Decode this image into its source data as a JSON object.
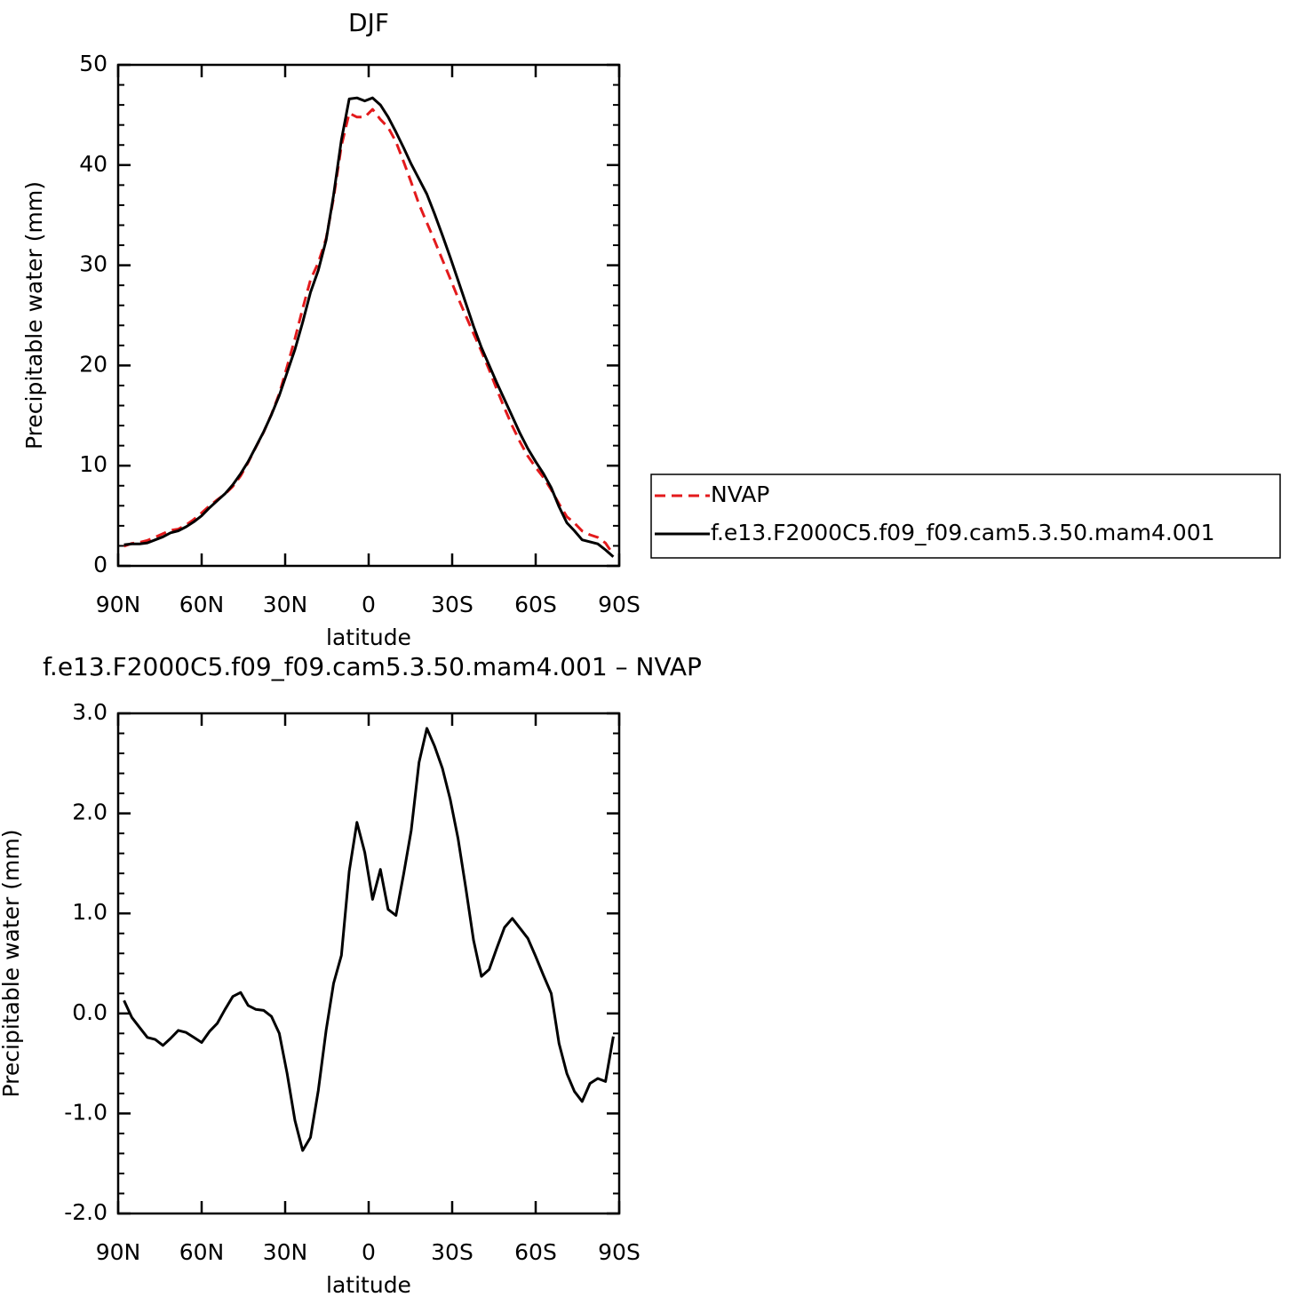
{
  "chart_data": [
    {
      "type": "line",
      "title": "DJF",
      "xlabel": "latitude",
      "ylabel": "Precipitable water (mm)",
      "x": [
        87.9,
        85.1,
        82.3,
        79.5,
        76.7,
        73.9,
        71.2,
        68.4,
        65.6,
        62.8,
        60,
        57.2,
        54.4,
        51.6,
        48.8,
        46,
        43.3,
        40.5,
        37.7,
        34.9,
        32.1,
        29.3,
        26.5,
        23.7,
        20.9,
        18.1,
        15.3,
        12.6,
        9.8,
        7,
        4.2,
        1.4,
        -1.4,
        -4.2,
        -7,
        -9.8,
        -12.6,
        -15.3,
        -18.1,
        -20.9,
        -23.7,
        -26.5,
        -29.3,
        -32.1,
        -34.9,
        -37.7,
        -40.5,
        -43.3,
        -46,
        -48.8,
        -51.6,
        -54.4,
        -57.2,
        -60,
        -62.8,
        -65.6,
        -68.4,
        -71.2,
        -73.9,
        -76.7,
        -79.5,
        -82.3,
        -85.1,
        -87.9
      ],
      "series": [
        {
          "name": "NVAP",
          "color": "#e31a1c",
          "line_style": "dashed",
          "values": [
            1.97,
            2.24,
            2.34,
            2.54,
            2.86,
            3.22,
            3.55,
            3.67,
            4.09,
            4.64,
            5.29,
            5.98,
            6.6,
            7.16,
            7.93,
            8.99,
            10.32,
            11.86,
            13.37,
            15.13,
            17.2,
            19.9,
            22.67,
            25.67,
            28.54,
            30.27,
            32.67,
            36.7,
            41.92,
            45.18,
            44.79,
            44.79,
            45.56,
            44.56,
            43.76,
            42.32,
            40.3,
            38.27,
            36.09,
            34.25,
            32.43,
            30.55,
            28.66,
            26.75,
            24.95,
            23.17,
            21.43,
            19.56,
            17.65,
            15.74,
            13.95,
            12.35,
            10.95,
            9.83,
            8.82,
            7.6,
            6.2,
            4.9,
            4.28,
            3.48,
            3.1,
            2.85,
            2.28,
            1.13
          ]
        },
        {
          "name": "f.e13.F2000C5.f09_f09.cam5.3.50.mam4.001",
          "color": "#000000",
          "line_style": "solid",
          "values": [
            2.1,
            2.2,
            2.2,
            2.3,
            2.6,
            2.9,
            3.3,
            3.5,
            3.9,
            4.4,
            5.0,
            5.8,
            6.5,
            7.2,
            8.1,
            9.2,
            10.4,
            11.9,
            13.4,
            15.1,
            17.0,
            19.3,
            21.6,
            24.3,
            27.3,
            29.5,
            32.5,
            37.0,
            42.5,
            46.6,
            46.7,
            46.4,
            46.7,
            46.0,
            44.8,
            43.3,
            41.7,
            40.1,
            38.6,
            37.1,
            35.1,
            33.0,
            30.8,
            28.5,
            26.2,
            23.9,
            21.8,
            20.0,
            18.3,
            16.6,
            14.9,
            13.2,
            11.7,
            10.4,
            9.2,
            7.8,
            5.9,
            4.3,
            3.5,
            2.6,
            2.4,
            2.2,
            1.6,
            0.9
          ]
        }
      ],
      "xlim": [
        90,
        -90
      ],
      "xticks": [
        {
          "value": 90,
          "label": "90N"
        },
        {
          "value": 60,
          "label": "60N"
        },
        {
          "value": 30,
          "label": "30N"
        },
        0,
        {
          "value": -30,
          "label": "30S"
        },
        {
          "value": -60,
          "label": "60S"
        },
        {
          "value": -90,
          "label": "90S"
        }
      ],
      "ylim": [
        0,
        50
      ],
      "yticks": [
        0,
        10,
        20,
        30,
        40,
        50
      ],
      "legend": "right"
    },
    {
      "type": "line",
      "title": "f.e13.F2000C5.f09_f09.cam5.3.50.mam4.001 – NVAP",
      "xlabel": "latitude",
      "ylabel": "Precipitable water (mm)",
      "x": [
        87.9,
        85.1,
        82.3,
        79.5,
        76.7,
        73.9,
        71.2,
        68.4,
        65.6,
        62.8,
        60,
        57.2,
        54.4,
        51.6,
        48.8,
        46,
        43.3,
        40.5,
        37.7,
        34.9,
        32.1,
        29.3,
        26.5,
        23.7,
        20.9,
        18.1,
        15.3,
        12.6,
        9.8,
        7,
        4.2,
        1.4,
        -1.4,
        -4.2,
        -7,
        -9.8,
        -12.6,
        -15.3,
        -18.1,
        -20.9,
        -23.7,
        -26.5,
        -29.3,
        -32.1,
        -34.9,
        -37.7,
        -40.5,
        -43.3,
        -46,
        -48.8,
        -51.6,
        -54.4,
        -57.2,
        -60,
        -62.8,
        -65.6,
        -68.4,
        -71.2,
        -73.9,
        -76.7,
        -79.5,
        -82.3,
        -85.1,
        -87.9
      ],
      "values": [
        0.13,
        -0.04,
        -0.14,
        -0.24,
        -0.26,
        -0.32,
        -0.25,
        -0.17,
        -0.19,
        -0.24,
        -0.29,
        -0.18,
        -0.1,
        0.04,
        0.17,
        0.21,
        0.08,
        0.04,
        0.03,
        -0.03,
        -0.2,
        -0.6,
        -1.07,
        -1.37,
        -1.24,
        -0.77,
        -0.17,
        0.3,
        0.58,
        1.42,
        1.91,
        1.61,
        1.14,
        1.44,
        1.04,
        0.98,
        1.4,
        1.83,
        2.51,
        2.85,
        2.67,
        2.45,
        2.14,
        1.75,
        1.25,
        0.73,
        0.37,
        0.44,
        0.65,
        0.86,
        0.95,
        0.85,
        0.75,
        0.57,
        0.38,
        0.2,
        -0.3,
        -0.6,
        -0.78,
        -0.88,
        -0.7,
        -0.65,
        -0.68,
        -0.23
      ],
      "color": "#000000",
      "xlim": [
        90,
        -90
      ],
      "xticks": [
        {
          "value": 90,
          "label": "90N"
        },
        {
          "value": 60,
          "label": "60N"
        },
        {
          "value": 30,
          "label": "30N"
        },
        0,
        {
          "value": -30,
          "label": "30S"
        },
        {
          "value": -60,
          "label": "60S"
        },
        {
          "value": -90,
          "label": "90S"
        }
      ],
      "ylim": [
        -2,
        3
      ],
      "yticks": [
        {
          "value": -2,
          "label": "-2.0"
        },
        {
          "value": -1,
          "label": "-1.0"
        },
        {
          "value": 0,
          "label": "0.0"
        },
        {
          "value": 1,
          "label": "1.0"
        },
        {
          "value": 2,
          "label": "2.0"
        },
        {
          "value": 3,
          "label": "3.0"
        }
      ]
    }
  ]
}
